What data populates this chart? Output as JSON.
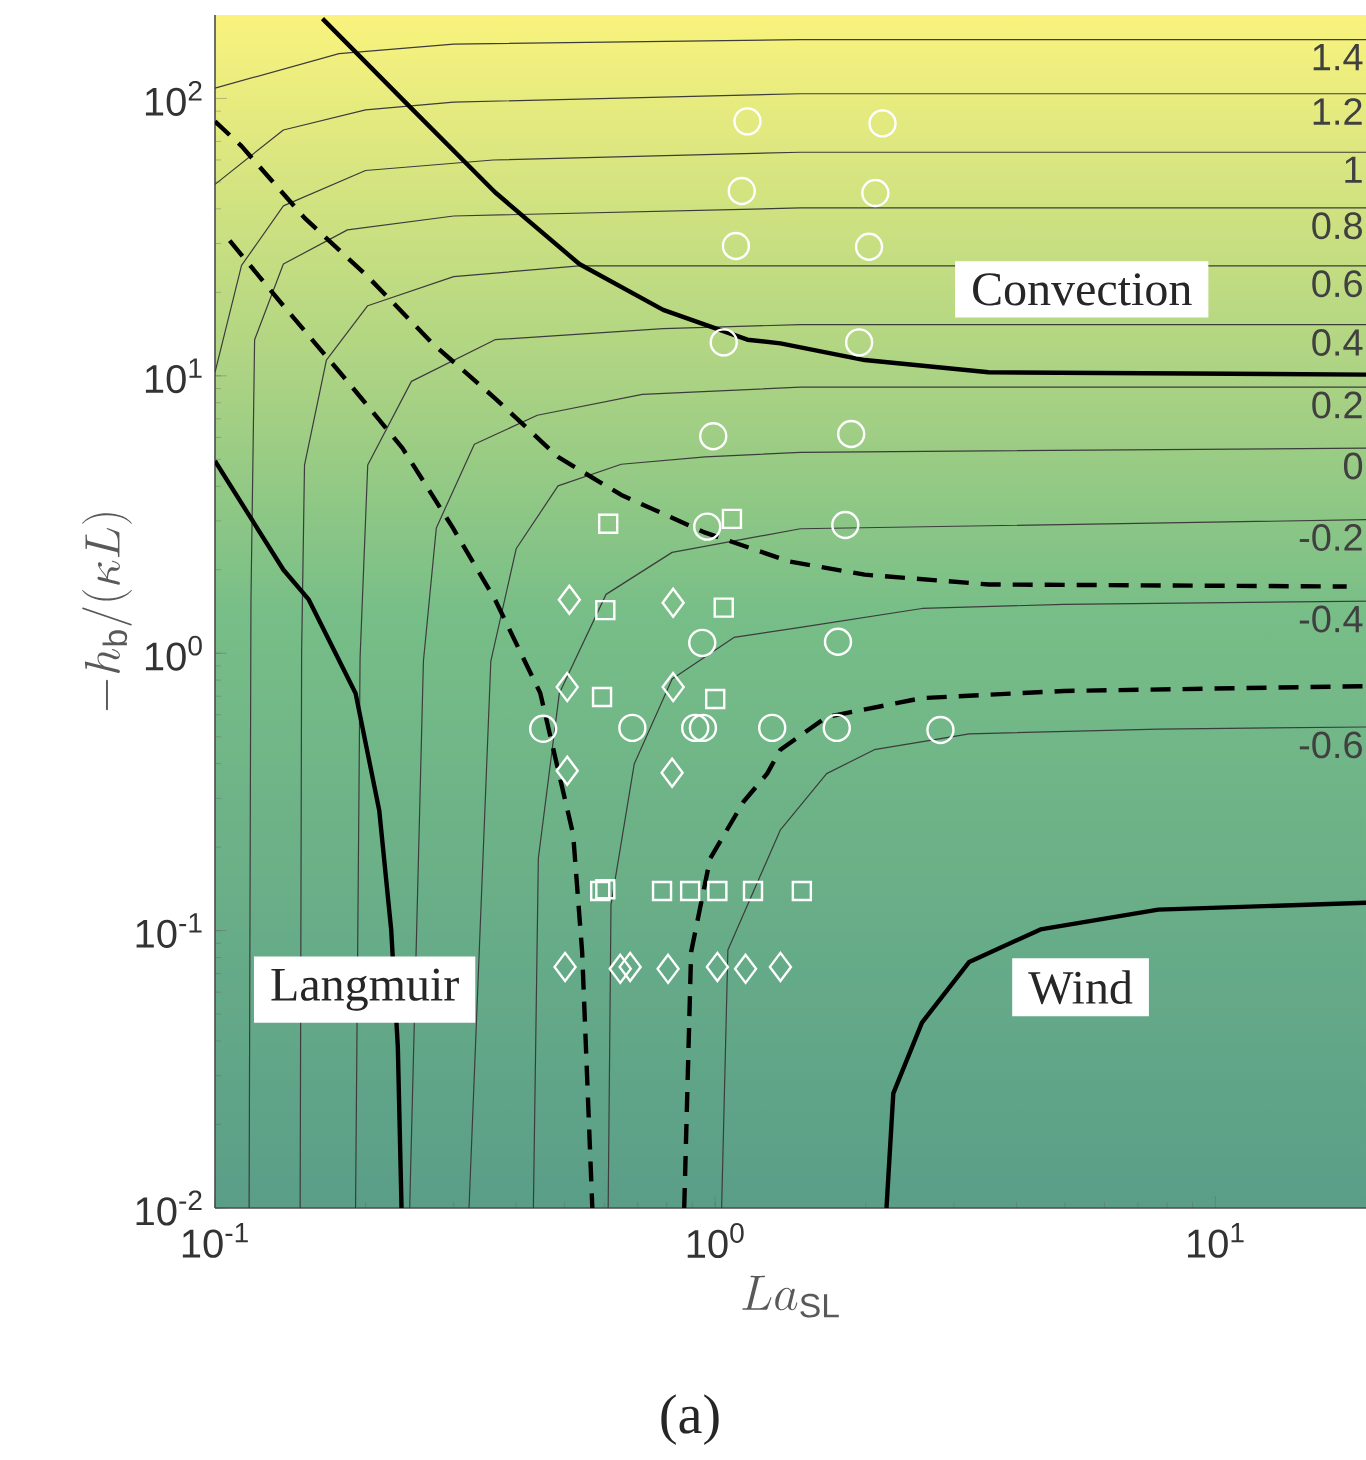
{
  "chart_data": {
    "type": "line",
    "xlabel": "La_{\\mathrm{SL}}",
    "ylabel": "-h_{\\mathrm{b}}/(\\kappa L)",
    "log": "xy",
    "xlim": [
      0.1,
      20
    ],
    "ylim": [
      0.01,
      200
    ],
    "xticks": [
      {
        "value": 0.1,
        "label": "10$^{-1}$"
      },
      {
        "value": 1,
        "label": "10$^{0}$"
      },
      {
        "value": 10,
        "label": "10$^{1}$"
      }
    ],
    "yticks": [
      {
        "value": 0.01,
        "label": "10$^{-2}$"
      },
      {
        "value": 0.1,
        "label": "10$^{-1}$"
      },
      {
        "value": 1,
        "label": "10$^{0}$"
      },
      {
        "value": 10,
        "label": "10$^{1}$"
      },
      {
        "value": 100,
        "label": "10$^{2}$"
      }
    ],
    "annotations": [
      "Convection",
      "Langmuir",
      "Wind",
      "(a)"
    ],
    "series": [
      {
        "name": "1.4",
        "color": "#3c3c3c",
        "line_style": "solid",
        "x": [
          0.1,
          0.177,
          0.3,
          1.48,
          20
        ],
        "values": [
          109,
          145,
          157,
          163,
          163
        ]
      },
      {
        "name": "1.2",
        "color": "#3c3c3c",
        "line_style": "solid",
        "x": [
          0.1,
          0.137,
          0.2,
          0.3,
          1.48,
          20
        ],
        "values": [
          49,
          77,
          91,
          97,
          104,
          104
        ]
      },
      {
        "name": "1",
        "color": "#3c3c3c",
        "line_style": "solid",
        "x": [
          0.1,
          0.113,
          0.137,
          0.2,
          0.36,
          1.48,
          20
        ],
        "values": [
          10.3,
          25,
          41,
          55,
          60,
          64,
          64
        ]
      },
      {
        "name": "0.8",
        "color": "#3c3c3c",
        "line_style": "solid",
        "x": [
          0.117,
          0.118,
          0.12,
          0.137,
          0.184,
          0.3,
          1.48,
          20
        ],
        "values": [
          0.01,
          1.54,
          13.5,
          25.3,
          33.6,
          37.7,
          40.3,
          40.3
        ]
      },
      {
        "name": "0.6",
        "color": "#3c3c3c",
        "line_style": "solid",
        "x": [
          0.148,
          0.149,
          0.151,
          0.167,
          0.202,
          0.3,
          0.535,
          1.48,
          20
        ],
        "values": [
          0.01,
          1.0,
          4.77,
          11.4,
          17.9,
          22.8,
          24.9,
          24.9,
          24.9
        ]
      },
      {
        "name": "0.4",
        "color": "#3c3c3c",
        "line_style": "solid",
        "x": [
          0.191,
          0.195,
          0.202,
          0.247,
          0.363,
          0.787,
          1.48,
          20
        ],
        "values": [
          0.01,
          0.96,
          4.77,
          9.55,
          13.5,
          14.8,
          15.3,
          15.3
        ]
      },
      {
        "name": "0.2",
        "color": "#3c3c3c",
        "line_style": "solid",
        "x": [
          0.245,
          0.261,
          0.277,
          0.33,
          0.441,
          0.715,
          1.48,
          20
        ],
        "values": [
          0.01,
          0.936,
          2.83,
          5.67,
          7.21,
          8.58,
          9.1,
          9.1
        ]
      },
      {
        "name": "0",
        "color": "#3c3c3c",
        "line_style": "solid",
        "x": [
          0.322,
          0.356,
          0.4,
          0.485,
          0.649,
          0.955,
          1.48,
          20
        ],
        "values": [
          0.01,
          0.936,
          2.38,
          4.01,
          4.8,
          5.1,
          5.3,
          5.49
        ]
      },
      {
        "name": "-0.2",
        "color": "#3c3c3c",
        "line_style": "solid",
        "x": [
          0.433,
          0.443,
          0.488,
          0.605,
          0.82,
          1.48,
          20
        ],
        "values": [
          0.01,
          0.182,
          0.718,
          1.63,
          2.31,
          2.81,
          3.03
        ]
      },
      {
        "name": "-0.4",
        "color": "#3c3c3c",
        "line_style": "solid",
        "x": [
          0.611,
          0.619,
          0.689,
          0.82,
          1.09,
          1.48,
          2.59,
          4.97,
          20
        ],
        "values": [
          0.01,
          0.124,
          0.399,
          0.807,
          1.14,
          1.24,
          1.45,
          1.5,
          1.54
        ]
      },
      {
        "name": "-0.6",
        "color": "#3c3c3c",
        "line_style": "solid",
        "x": [
          1.03,
          1.06,
          1.35,
          1.67,
          2.08,
          3.22,
          7.69,
          20
        ],
        "values": [
          0.01,
          0.0851,
          0.231,
          0.368,
          0.449,
          0.512,
          0.533,
          0.542
        ]
      },
      {
        "color": "#000000",
        "line_style": "solid",
        "x": [
          0.164,
          0.247,
          0.363,
          0.535,
          0.787,
          1.16,
          1.35,
          1.99,
          3.52,
          20
        ],
        "values": [
          194,
          92.1,
          45.9,
          25.3,
          17.3,
          13.5,
          13.1,
          11.4,
          10.3,
          10.1
        ]
      },
      {
        "color": "#000000",
        "line_style": "solid",
        "x": [
          0.1,
          0.137,
          0.154,
          0.191,
          0.213,
          0.225,
          0.232,
          0.236
        ],
        "values": [
          4.93,
          2.0,
          1.56,
          0.718,
          0.271,
          0.101,
          0.0382,
          0.01
        ]
      },
      {
        "color": "#000000",
        "line_style": "solid",
        "x": [
          2.2,
          2.27,
          2.59,
          3.22,
          4.47,
          7.69,
          20
        ],
        "values": [
          0.01,
          0.0259,
          0.0466,
          0.0771,
          0.101,
          0.119,
          0.126
        ]
      },
      {
        "color": "#000000",
        "line_style": "dashed",
        "x": [
          0.1,
          0.113,
          0.151,
          0.202,
          0.272,
          0.363,
          0.485,
          0.649,
          0.955,
          1.41,
          1.99,
          3.52,
          18.3
        ],
        "values": [
          82.7,
          67.3,
          37.1,
          22.8,
          13.1,
          8.3,
          5.1,
          3.72,
          2.72,
          2.14,
          1.92,
          1.77,
          1.74
        ]
      },
      {
        "color": "#000000",
        "line_style": "dashed",
        "x": [
          0.107,
          0.137,
          0.184,
          0.237,
          0.299,
          0.363,
          0.447,
          0.52,
          0.542,
          0.568
        ],
        "values": [
          30.7,
          17.9,
          9.55,
          5.49,
          2.83,
          1.56,
          0.718,
          0.222,
          0.0837,
          0.01
        ]
      },
      {
        "color": "#000000",
        "line_style": "dashed",
        "x": [
          0.867,
          0.895,
          0.977,
          1.14,
          1.27,
          1.35,
          1.67,
          2.59,
          4.97,
          20
        ],
        "values": [
          0.01,
          0.0837,
          0.182,
          0.292,
          0.368,
          0.449,
          0.589,
          0.689,
          0.731,
          0.761
        ]
      },
      {
        "type": "scatter",
        "marker": "circle",
        "color": "#ffffff",
        "x": [
          1.16,
          2.16,
          1.13,
          2.09,
          1.1,
          2.03,
          1.04,
          1.94,
          0.991,
          1.87,
          0.964,
          1.82,
          0.942,
          1.76,
          0.945,
          1.3,
          1.75,
          2.82
        ],
        "values": [
          82.7,
          81.3,
          46.4,
          45.6,
          29.4,
          29.2,
          13.2,
          13.2,
          6.06,
          6.17,
          2.86,
          2.9,
          1.09,
          1.1,
          0.538,
          0.538,
          0.538,
          0.529
        ]
      },
      {
        "type": "scatter",
        "marker": "circle",
        "color": "#ffffff",
        "x": [
          0.453,
          0.683,
          0.912
        ],
        "values": [
          0.534,
          0.538,
          0.538
        ]
      },
      {
        "type": "scatter",
        "marker": "square",
        "color": "#ffffff",
        "x": [
          0.611,
          1.08,
          0.603,
          1.04,
          0.594,
          1.0,
          0.603,
          0.783,
          1.01,
          1.49
        ],
        "values": [
          2.93,
          3.05,
          1.43,
          1.46,
          0.695,
          0.684,
          0.141,
          0.139,
          0.139,
          0.139
        ]
      },
      {
        "type": "scatter",
        "marker": "square",
        "color": "#ffffff",
        "x": [
          0.589,
          0.891,
          1.19
        ],
        "values": [
          0.139,
          0.139,
          0.139
        ]
      },
      {
        "type": "scatter",
        "marker": "diamond",
        "color": "#ffffff",
        "x": [
          0.511,
          0.824,
          0.506,
          0.824,
          0.506,
          0.82,
          0.501,
          0.646,
          0.805,
          1.15
        ],
        "values": [
          1.56,
          1.52,
          0.755,
          0.755,
          0.377,
          0.371,
          0.074,
          0.0728,
          0.0728,
          0.0728
        ]
      },
      {
        "type": "scatter",
        "marker": "diamond",
        "color": "#ffffff",
        "x": [
          0.676,
          1.01,
          1.35
        ],
        "values": [
          0.074,
          0.074,
          0.074
        ]
      }
    ]
  }
}
